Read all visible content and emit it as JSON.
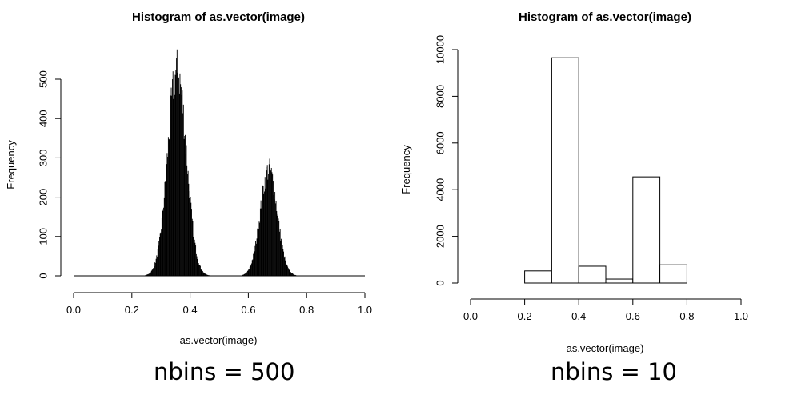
{
  "chart_data": [
    {
      "type": "bar",
      "title": "Histogram of as.vector(image)",
      "xlabel": "as.vector(image)",
      "ylabel": "Frequency",
      "xlim": [
        0,
        1
      ],
      "ylim": [
        0,
        500
      ],
      "xticks": [
        "0.0",
        "0.2",
        "0.4",
        "0.6",
        "0.8",
        "1.0"
      ],
      "yticks": [
        "0",
        "100",
        "200",
        "300",
        "400",
        "500"
      ],
      "bins": 500,
      "caption": "nbins = 500",
      "modes": [
        {
          "center": 0.355,
          "sd": 0.032,
          "peak": 520
        },
        {
          "center": 0.67,
          "sd": 0.029,
          "peak": 270
        }
      ]
    },
    {
      "type": "bar",
      "title": "Histogram of as.vector(image)",
      "xlabel": "as.vector(image)",
      "ylabel": "Frequency",
      "xlim": [
        0,
        1
      ],
      "ylim": [
        0,
        10000
      ],
      "xticks": [
        "0.0",
        "0.2",
        "0.4",
        "0.6",
        "0.8",
        "1.0"
      ],
      "yticks": [
        "0",
        "2000",
        "4000",
        "6000",
        "8000",
        "10000"
      ],
      "bins": 10,
      "caption": "nbins = 10",
      "bin_edges": [
        0.0,
        0.1,
        0.2,
        0.3,
        0.4,
        0.5,
        0.6,
        0.7,
        0.8,
        0.9,
        1.0
      ],
      "values": [
        0,
        0,
        520,
        9650,
        720,
        170,
        4550,
        780,
        0,
        0
      ]
    }
  ]
}
